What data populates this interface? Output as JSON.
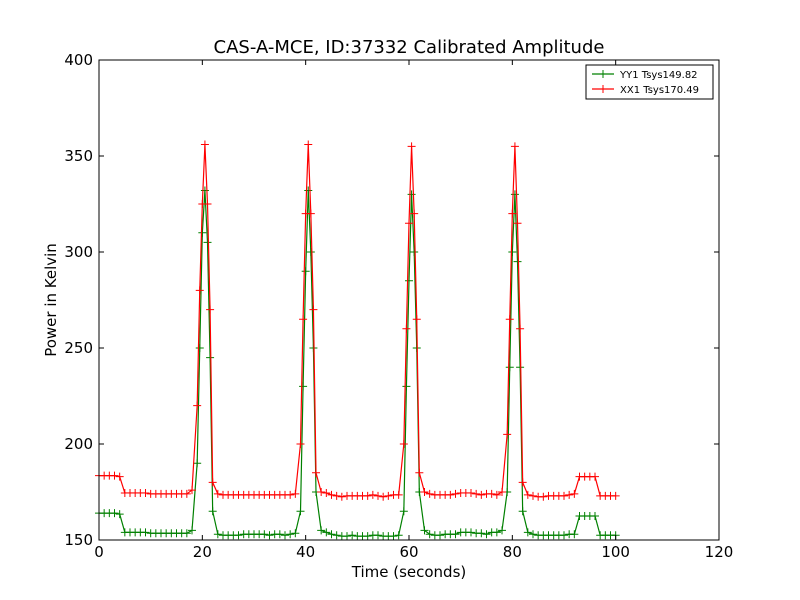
{
  "chart_data": {
    "type": "line",
    "title": "CAS-A-MCE, ID:37332 Calibrated Amplitude",
    "xlabel": "Time (seconds)",
    "ylabel": "Power in Kelvin",
    "xlim": [
      0,
      120
    ],
    "ylim": [
      150,
      400
    ],
    "xticks": [
      0,
      20,
      40,
      60,
      80,
      100,
      120
    ],
    "yticks": [
      150,
      200,
      250,
      300,
      350,
      400
    ],
    "grid": false,
    "legend_position": "top-right",
    "marker": "+",
    "series": [
      {
        "name": "YY1 Tsys149.82",
        "color": "#008000",
        "points": [
          [
            0,
            164
          ],
          [
            1,
            164
          ],
          [
            2,
            164
          ],
          [
            3,
            164
          ],
          [
            4,
            163.5
          ],
          [
            5,
            154
          ],
          [
            6,
            154
          ],
          [
            7,
            154
          ],
          [
            8,
            154
          ],
          [
            9,
            154
          ],
          [
            10,
            153.5
          ],
          [
            11,
            153.5
          ],
          [
            12,
            153.5
          ],
          [
            13,
            153.5
          ],
          [
            14,
            153.5
          ],
          [
            15,
            153.5
          ],
          [
            16,
            153.5
          ],
          [
            17,
            153.5
          ],
          [
            18,
            155
          ],
          [
            19,
            190
          ],
          [
            19.5,
            250
          ],
          [
            20,
            310
          ],
          [
            20.5,
            332
          ],
          [
            21,
            305
          ],
          [
            21.5,
            245
          ],
          [
            22,
            165
          ],
          [
            23,
            153
          ],
          [
            24,
            152.5
          ],
          [
            25,
            152.5
          ],
          [
            26,
            152.5
          ],
          [
            27,
            152.5
          ],
          [
            28,
            153
          ],
          [
            29,
            153
          ],
          [
            30,
            153
          ],
          [
            31,
            153
          ],
          [
            32,
            153
          ],
          [
            33,
            152.5
          ],
          [
            34,
            153
          ],
          [
            35,
            153
          ],
          [
            36,
            152.5
          ],
          [
            37,
            153
          ],
          [
            38,
            153.5
          ],
          [
            39,
            165
          ],
          [
            39.5,
            230
          ],
          [
            40,
            290
          ],
          [
            40.5,
            332
          ],
          [
            41,
            300
          ],
          [
            41.5,
            250
          ],
          [
            42,
            175
          ],
          [
            43,
            155
          ],
          [
            44,
            154
          ],
          [
            45,
            153
          ],
          [
            46,
            152.5
          ],
          [
            47,
            152
          ],
          [
            48,
            152
          ],
          [
            49,
            152.5
          ],
          [
            50,
            152
          ],
          [
            51,
            152
          ],
          [
            52,
            152
          ],
          [
            53,
            152.5
          ],
          [
            54,
            152.5
          ],
          [
            55,
            152
          ],
          [
            56,
            152
          ],
          [
            57,
            152
          ],
          [
            58,
            152.5
          ],
          [
            59,
            165
          ],
          [
            59.5,
            230
          ],
          [
            60,
            285
          ],
          [
            60.5,
            330
          ],
          [
            61,
            300
          ],
          [
            61.5,
            250
          ],
          [
            62,
            175
          ],
          [
            63,
            155
          ],
          [
            64,
            153
          ],
          [
            65,
            152.5
          ],
          [
            66,
            152.5
          ],
          [
            67,
            153
          ],
          [
            68,
            153
          ],
          [
            69,
            153
          ],
          [
            70,
            154
          ],
          [
            71,
            154
          ],
          [
            72,
            154
          ],
          [
            73,
            153.5
          ],
          [
            74,
            153.5
          ],
          [
            75,
            153
          ],
          [
            76,
            154
          ],
          [
            77,
            154
          ],
          [
            78,
            155
          ],
          [
            79,
            175
          ],
          [
            79.5,
            240
          ],
          [
            80,
            300
          ],
          [
            80.5,
            330
          ],
          [
            81,
            295
          ],
          [
            81.5,
            240
          ],
          [
            82,
            165
          ],
          [
            83,
            154
          ],
          [
            84,
            153
          ],
          [
            85,
            152.5
          ],
          [
            86,
            152.5
          ],
          [
            87,
            152.5
          ],
          [
            88,
            152.5
          ],
          [
            89,
            152.5
          ],
          [
            90,
            152.5
          ],
          [
            91,
            153
          ],
          [
            92,
            153
          ],
          [
            93,
            162.5
          ],
          [
            94,
            162.5
          ],
          [
            95,
            162.5
          ],
          [
            96,
            162.5
          ],
          [
            97,
            152.5
          ],
          [
            98,
            152.5
          ],
          [
            99,
            152.5
          ],
          [
            100,
            152.5
          ]
        ]
      },
      {
        "name": "XX1 Tsys170.49",
        "color": "#ff0000",
        "points": [
          [
            0,
            183.5
          ],
          [
            1,
            183.5
          ],
          [
            2,
            183.5
          ],
          [
            3,
            183.5
          ],
          [
            4,
            183
          ],
          [
            5,
            174.5
          ],
          [
            6,
            174.5
          ],
          [
            7,
            174.5
          ],
          [
            8,
            174.5
          ],
          [
            9,
            174.5
          ],
          [
            10,
            174
          ],
          [
            11,
            174
          ],
          [
            12,
            174
          ],
          [
            13,
            174
          ],
          [
            14,
            174
          ],
          [
            15,
            174
          ],
          [
            16,
            174
          ],
          [
            17,
            174
          ],
          [
            18,
            176
          ],
          [
            19,
            220
          ],
          [
            19.5,
            280
          ],
          [
            20,
            325
          ],
          [
            20.5,
            356
          ],
          [
            21,
            325
          ],
          [
            21.5,
            270
          ],
          [
            22,
            180
          ],
          [
            23,
            174
          ],
          [
            24,
            173.5
          ],
          [
            25,
            173.5
          ],
          [
            26,
            173.5
          ],
          [
            27,
            173.5
          ],
          [
            28,
            173.5
          ],
          [
            29,
            173.5
          ],
          [
            30,
            173.5
          ],
          [
            31,
            173.5
          ],
          [
            32,
            173.5
          ],
          [
            33,
            173.5
          ],
          [
            34,
            173.5
          ],
          [
            35,
            173.5
          ],
          [
            36,
            173.5
          ],
          [
            37,
            173.5
          ],
          [
            38,
            174
          ],
          [
            39,
            200
          ],
          [
            39.5,
            265
          ],
          [
            40,
            320
          ],
          [
            40.5,
            356
          ],
          [
            41,
            320
          ],
          [
            41.5,
            270
          ],
          [
            42,
            185
          ],
          [
            43,
            175
          ],
          [
            44,
            174.5
          ],
          [
            45,
            173.5
          ],
          [
            46,
            173
          ],
          [
            47,
            172.5
          ],
          [
            48,
            173
          ],
          [
            49,
            173
          ],
          [
            50,
            173
          ],
          [
            51,
            173
          ],
          [
            52,
            173
          ],
          [
            53,
            173.5
          ],
          [
            54,
            173
          ],
          [
            55,
            172.5
          ],
          [
            56,
            173
          ],
          [
            57,
            173.5
          ],
          [
            58,
            173.5
          ],
          [
            59,
            200
          ],
          [
            59.5,
            260
          ],
          [
            60,
            315
          ],
          [
            60.5,
            355
          ],
          [
            61,
            320
          ],
          [
            61.5,
            265
          ],
          [
            62,
            185
          ],
          [
            63,
            175
          ],
          [
            64,
            174
          ],
          [
            65,
            173.5
          ],
          [
            66,
            173.5
          ],
          [
            67,
            173.5
          ],
          [
            68,
            173.5
          ],
          [
            69,
            174
          ],
          [
            70,
            174.5
          ],
          [
            71,
            174.5
          ],
          [
            72,
            174.5
          ],
          [
            73,
            174
          ],
          [
            74,
            173.5
          ],
          [
            75,
            174
          ],
          [
            76,
            174
          ],
          [
            77,
            173.5
          ],
          [
            78,
            175
          ],
          [
            79,
            205
          ],
          [
            79.5,
            265
          ],
          [
            80,
            320
          ],
          [
            80.5,
            355
          ],
          [
            81,
            315
          ],
          [
            81.5,
            260
          ],
          [
            82,
            180
          ],
          [
            83,
            173.5
          ],
          [
            84,
            173
          ],
          [
            85,
            172.5
          ],
          [
            86,
            172.5
          ],
          [
            87,
            173
          ],
          [
            88,
            173
          ],
          [
            89,
            173
          ],
          [
            90,
            173
          ],
          [
            91,
            173.5
          ],
          [
            92,
            174
          ],
          [
            93,
            183
          ],
          [
            94,
            183
          ],
          [
            95,
            183
          ],
          [
            96,
            183
          ],
          [
            97,
            173
          ],
          [
            98,
            173
          ],
          [
            99,
            173
          ],
          [
            100,
            173
          ]
        ]
      }
    ]
  }
}
